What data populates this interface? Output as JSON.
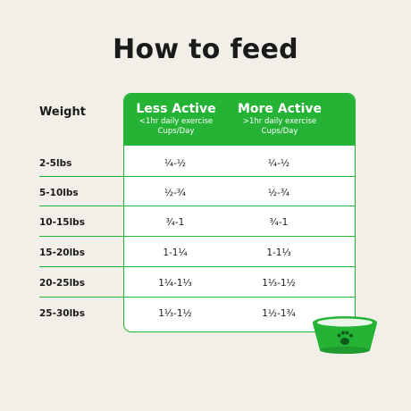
{
  "title": "How to feed",
  "weight_header": "Weight",
  "columns": [
    {
      "title": "Less Active",
      "subtitle": "<1hr daily exercise",
      "unit": "Cups/Day"
    },
    {
      "title": "More Active",
      "subtitle": ">1hr daily exercise",
      "unit": "Cups/Day"
    }
  ],
  "rows": [
    {
      "weight": "2-5lbs",
      "less": "¼-½",
      "more": "¼-½"
    },
    {
      "weight": "5-10lbs",
      "less": "½-¾",
      "more": "½-¾"
    },
    {
      "weight": "10-15lbs",
      "less": "¾-1",
      "more": "¾-1"
    },
    {
      "weight": "15-20lbs",
      "less": "1-1¼",
      "more": "1-1⅓"
    },
    {
      "weight": "20-25lbs",
      "less": "1¼-1⅓",
      "more": "1⅓-1½"
    },
    {
      "weight": "25-30lbs",
      "less": "1⅓-1½",
      "more": "1½-1¾"
    }
  ],
  "colors": {
    "accent": "#25b335",
    "background": "#f2efe9"
  },
  "icons": {
    "bowl": "dog-bowl-icon",
    "paw": "paw-icon"
  }
}
